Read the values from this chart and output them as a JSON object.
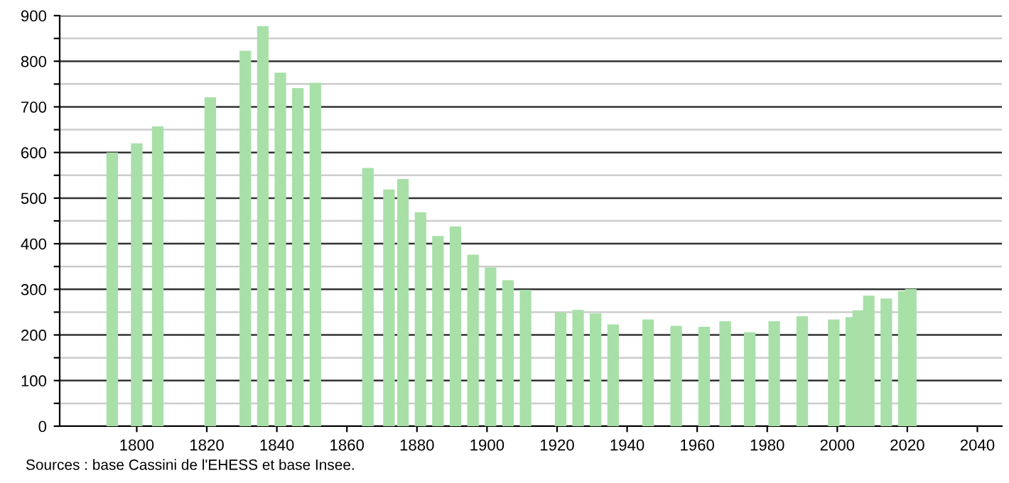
{
  "chart_data": {
    "type": "bar",
    "x": [
      1793,
      1800,
      1806,
      1821,
      1831,
      1836,
      1841,
      1846,
      1851,
      1866,
      1872,
      1876,
      1881,
      1886,
      1891,
      1896,
      1901,
      1906,
      1911,
      1921,
      1926,
      1931,
      1936,
      1946,
      1954,
      1962,
      1968,
      1975,
      1982,
      1990,
      1999,
      2004,
      2006,
      2009,
      2014,
      2019,
      2021
    ],
    "values": [
      600,
      620,
      657,
      721,
      823,
      877,
      775,
      741,
      753,
      566,
      519,
      542,
      469,
      417,
      438,
      376,
      348,
      320,
      299,
      249,
      255,
      247,
      223,
      234,
      220,
      218,
      230,
      206,
      230,
      241,
      234,
      239,
      254,
      286,
      280,
      296,
      301
    ],
    "color": "#a8e0a8",
    "xlim": [
      1778,
      2047
    ],
    "xticks": [
      1800,
      1820,
      1840,
      1860,
      1880,
      1900,
      1920,
      1940,
      1960,
      1980,
      2000,
      2020,
      2040
    ],
    "ylim": [
      0,
      900
    ],
    "yticks": [
      0,
      {
        "value": 50,
        "label": null
      },
      100,
      {
        "value": 150,
        "label": null
      },
      200,
      {
        "value": 250,
        "label": null
      },
      300,
      {
        "value": 350,
        "label": null
      },
      400,
      {
        "value": 450,
        "label": null
      },
      500,
      {
        "value": 550,
        "label": null
      },
      600,
      {
        "value": 650,
        "label": null
      },
      700,
      {
        "value": 750,
        "label": null
      },
      800,
      {
        "value": 850,
        "label": null
      },
      900
    ],
    "grid": "y",
    "annotations": [
      "Sources : base Cassini de l'EHESS et base Insee."
    ]
  }
}
